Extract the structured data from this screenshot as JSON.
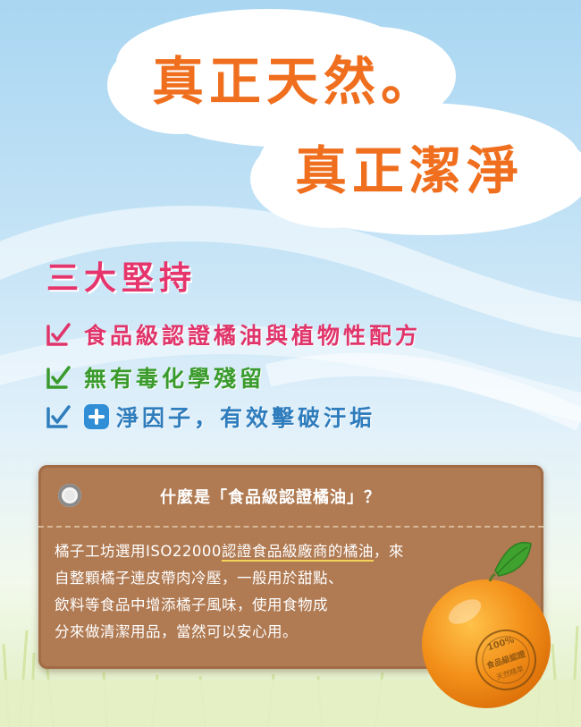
{
  "headline": {
    "line1": "真正天然。",
    "line2": "真正潔淨"
  },
  "principles": {
    "heading": "三大堅持",
    "items": [
      {
        "text": "食品級認證橘油與植物性配方",
        "color": "#e0356b"
      },
      {
        "text": "無有毒化學殘留",
        "color": "#3a9b2c"
      },
      {
        "text": "淨因子，有效擊破汙垢",
        "color": "#2f7dbd"
      }
    ]
  },
  "card": {
    "question": "什麼是「食品級認證橘油」？",
    "paragraph": {
      "line1_pre": "橘子工坊選用ISO22000",
      "line1_highlight": "認證食品級廠商的橘油",
      "line1_post": "，來",
      "line2": "自整顆橘子連皮帶肉冷壓，一般用於甜點、",
      "line3": "飲料等食品中增添橘子風味，使用食物成",
      "line4": "分來做清潔用品，當然可以安心用。"
    }
  },
  "orange_stamp": {
    "top": "100%",
    "middle": "食品級認證",
    "bottom": "天然精萃"
  },
  "colors": {
    "headline": "#ef6f1f",
    "heading": "#e6356c",
    "tag": "#b07a52",
    "highlight": "#f3d35a"
  }
}
